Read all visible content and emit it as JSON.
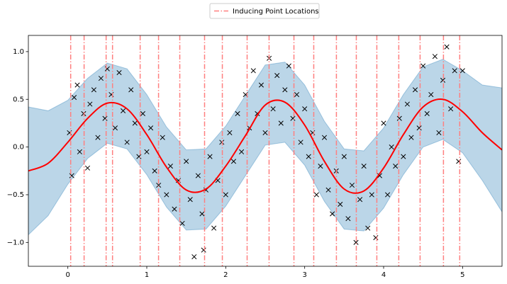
{
  "chart_data": {
    "type": "gp",
    "legend": "upper center",
    "xlim": [
      -0.5,
      5.5
    ],
    "ylim": [
      -1.25,
      1.17
    ],
    "xticks": [
      0,
      1,
      2,
      3,
      4,
      5
    ],
    "yticks": [
      {
        "value": -1.0,
        "label": "−1.0"
      },
      {
        "value": -0.5,
        "label": "−0.5"
      },
      {
        "value": 0.0,
        "label": "0.0"
      },
      {
        "value": 0.5,
        "label": "0.5"
      },
      {
        "value": 1.0,
        "label": "1.0"
      }
    ],
    "mean_color": "#ff0000",
    "band_color": "#1f77b4",
    "marker_color": "#000000",
    "x": [
      -0.5,
      -0.25,
      0,
      0.25,
      0.5,
      0.75,
      1.0,
      1.25,
      1.5,
      1.75,
      2.0,
      2.25,
      2.5,
      2.75,
      3.0,
      3.25,
      3.5,
      3.75,
      4.0,
      4.25,
      4.5,
      4.75,
      5.0,
      5.25,
      5.5
    ],
    "mean": [
      -0.25,
      -0.17,
      0.05,
      0.3,
      0.46,
      0.4,
      0.13,
      -0.21,
      -0.45,
      -0.44,
      -0.2,
      0.12,
      0.44,
      0.47,
      0.23,
      -0.15,
      -0.44,
      -0.46,
      -0.22,
      0.13,
      0.42,
      0.5,
      0.37,
      0.15,
      -0.03
    ],
    "upper": [
      0.42,
      0.38,
      0.49,
      0.72,
      0.88,
      0.82,
      0.55,
      0.21,
      -0.03,
      -0.02,
      0.22,
      0.54,
      0.86,
      0.89,
      0.65,
      0.27,
      -0.02,
      -0.04,
      0.2,
      0.55,
      0.84,
      0.92,
      0.8,
      0.65,
      0.62
    ],
    "lower": [
      -0.92,
      -0.72,
      -0.39,
      -0.12,
      0.04,
      -0.02,
      -0.29,
      -0.63,
      -0.87,
      -0.86,
      -0.62,
      -0.3,
      0.02,
      0.05,
      -0.19,
      -0.57,
      -0.86,
      -0.88,
      -0.64,
      -0.29,
      0.0,
      0.08,
      -0.06,
      -0.35,
      -0.68
    ],
    "scatter": {
      "x": [
        0.02,
        0.05,
        0.08,
        0.12,
        0.15,
        0.2,
        0.25,
        0.28,
        0.33,
        0.38,
        0.42,
        0.47,
        0.5,
        0.55,
        0.6,
        0.65,
        0.7,
        0.75,
        0.8,
        0.85,
        0.9,
        0.95,
        1.0,
        1.05,
        1.1,
        1.15,
        1.2,
        1.25,
        1.3,
        1.35,
        1.4,
        1.45,
        1.5,
        1.55,
        1.6,
        1.65,
        1.7,
        1.72,
        1.75,
        1.8,
        1.85,
        1.9,
        1.95,
        2.0,
        2.05,
        2.1,
        2.15,
        2.2,
        2.25,
        2.3,
        2.35,
        2.4,
        2.45,
        2.5,
        2.55,
        2.6,
        2.65,
        2.7,
        2.75,
        2.8,
        2.85,
        2.9,
        2.95,
        3.0,
        3.05,
        3.1,
        3.15,
        3.2,
        3.25,
        3.3,
        3.35,
        3.4,
        3.45,
        3.5,
        3.55,
        3.6,
        3.65,
        3.7,
        3.75,
        3.8,
        3.85,
        3.9,
        3.95,
        4.0,
        4.05,
        4.1,
        4.15,
        4.2,
        4.25,
        4.3,
        4.35,
        4.4,
        4.45,
        4.5,
        4.55,
        4.6,
        4.65,
        4.7,
        4.75,
        4.8,
        4.85,
        4.9,
        4.95,
        5.0
      ],
      "y": [
        0.15,
        -0.3,
        0.52,
        0.65,
        -0.05,
        0.35,
        -0.22,
        0.45,
        0.6,
        0.1,
        0.72,
        0.3,
        0.82,
        0.55,
        0.2,
        0.78,
        0.38,
        0.05,
        0.6,
        0.25,
        -0.1,
        0.35,
        -0.05,
        0.2,
        -0.25,
        -0.4,
        0.1,
        -0.5,
        -0.2,
        -0.65,
        -0.35,
        -0.8,
        -0.15,
        -0.55,
        -1.15,
        -0.3,
        -0.7,
        -1.08,
        -0.45,
        -0.1,
        -0.85,
        -0.35,
        0.05,
        -0.5,
        0.15,
        -0.15,
        0.35,
        -0.05,
        0.55,
        0.2,
        0.8,
        0.35,
        0.65,
        0.15,
        0.93,
        0.4,
        0.75,
        0.25,
        0.6,
        0.85,
        0.3,
        0.55,
        0.05,
        0.4,
        -0.1,
        0.15,
        -0.5,
        -0.2,
        0.1,
        -0.45,
        -0.7,
        -0.25,
        -0.6,
        -0.1,
        -0.75,
        -0.4,
        -1.0,
        -0.55,
        -0.2,
        -0.85,
        -0.5,
        -0.95,
        -0.3,
        0.25,
        -0.5,
        0.0,
        -0.2,
        0.3,
        -0.1,
        0.45,
        0.1,
        0.6,
        0.2,
        0.85,
        0.35,
        0.55,
        0.95,
        0.15,
        0.7,
        1.05,
        0.4,
        0.8,
        -0.15,
        0.8
      ]
    },
    "inducing_points": {
      "name": "Inducing Point Locations",
      "color": "#ff7f7f",
      "x": [
        0.036,
        0.206,
        0.485,
        0.566,
        0.916,
        1.149,
        1.418,
        1.732,
        1.957,
        2.271,
        2.549,
        2.864,
        3.115,
        3.402,
        3.654,
        3.914,
        4.192,
        4.462,
        4.758,
        4.964
      ]
    }
  }
}
